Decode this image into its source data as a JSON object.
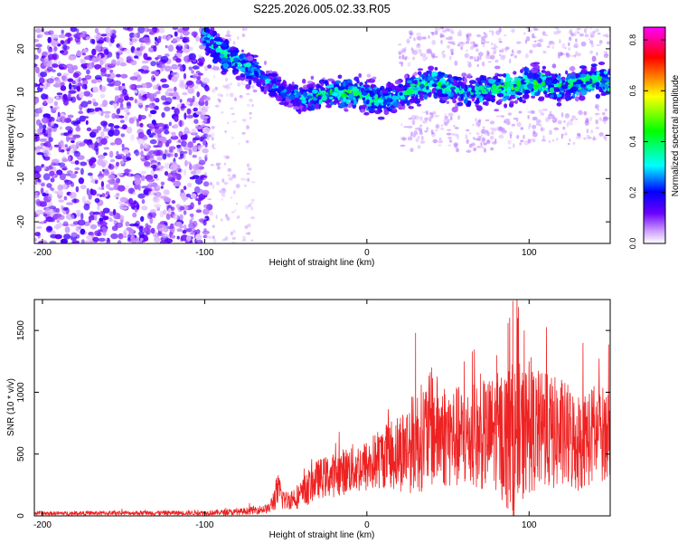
{
  "figure": {
    "title": "S225.2026.005.02.33.R05"
  },
  "chart_data": [
    {
      "type": "heatmap",
      "xlabel": "Height of straight line (km)",
      "ylabel": "Frequency (Hz)",
      "xlim": [
        -205,
        150
      ],
      "ylim": [
        -25,
        25
      ],
      "x_ticks": [
        -200,
        -100,
        0,
        100
      ],
      "y_ticks": [
        -20,
        -10,
        0,
        10,
        20
      ],
      "grid": false,
      "colorbar": {
        "label": "Normalized spectral amplitude",
        "range": [
          0.0,
          0.85
        ],
        "ticks": [
          0.0,
          0.2,
          0.4,
          0.6,
          0.8
        ],
        "colors": [
          "#ffffff",
          "#cc99ff",
          "#6a00ff",
          "#0000ff",
          "#00ffff",
          "#00ff00",
          "#ffff00",
          "#ff0000",
          "#ff00ff"
        ]
      },
      "noise_region": {
        "x_range": [
          -205,
          -100
        ],
        "f_range": [
          -25,
          25
        ],
        "amplitude": 0.1
      },
      "ridge": {
        "x": [
          -100,
          -90,
          -80,
          -70,
          -60,
          -50,
          -40,
          -30,
          -20,
          -10,
          0,
          10,
          20,
          30,
          40,
          50,
          60,
          70,
          80,
          90,
          100,
          110,
          120,
          130,
          140,
          150
        ],
        "freq": [
          23,
          19,
          17,
          15,
          12,
          10,
          8,
          9,
          10,
          10,
          9,
          8,
          9,
          11,
          12,
          11,
          10,
          10,
          11,
          11,
          12,
          12,
          11,
          12,
          13,
          12
        ],
        "peak_amplitude": [
          0.35,
          0.45,
          0.4,
          0.35,
          0.3,
          0.3,
          0.35,
          0.4,
          0.45,
          0.5,
          0.45,
          0.4,
          0.35,
          0.45,
          0.5,
          0.4,
          0.35,
          0.4,
          0.45,
          0.5,
          0.45,
          0.5,
          0.4,
          0.45,
          0.5,
          0.45
        ]
      }
    },
    {
      "type": "line",
      "xlabel": "Height of straight line (km)",
      "ylabel": "SNR (10 * v/v)",
      "xlim": [
        -205,
        150
      ],
      "ylim": [
        0,
        1750
      ],
      "x_ticks": [
        -200,
        -100,
        0,
        100
      ],
      "y_ticks": [
        0,
        500,
        1000,
        1500
      ],
      "grid": false,
      "series": [
        {
          "color": "#ee2222",
          "envelope_x": [
            -205,
            -100,
            -80,
            -60,
            -55,
            -50,
            -45,
            -40,
            -35,
            -30,
            -20,
            -10,
            0,
            10,
            20,
            30,
            40,
            50,
            60,
            70,
            80,
            90,
            100,
            110,
            120,
            130,
            140,
            150
          ],
          "envelope_mean": [
            20,
            25,
            30,
            60,
            200,
            120,
            150,
            170,
            250,
            300,
            330,
            380,
            400,
            480,
            520,
            600,
            700,
            650,
            620,
            640,
            680,
            600,
            700,
            680,
            650,
            600,
            650,
            680
          ],
          "envelope_spread": [
            15,
            20,
            25,
            40,
            150,
            80,
            90,
            120,
            150,
            160,
            180,
            200,
            220,
            260,
            330,
            420,
            480,
            430,
            420,
            440,
            480,
            650,
            520,
            480,
            460,
            420,
            400,
            380
          ],
          "peaks": [
            [
              30,
              1480
            ],
            [
              40,
              1200
            ],
            [
              60,
              1250
            ],
            [
              70,
              1150
            ],
            [
              80,
              1300
            ],
            [
              87,
              1560
            ],
            [
              90,
              1740
            ],
            [
              93,
              1600
            ],
            [
              97,
              1500
            ],
            [
              100,
              1250
            ],
            [
              110,
              1150
            ],
            [
              120,
              1100
            ],
            [
              140,
              1050
            ]
          ]
        }
      ]
    }
  ]
}
